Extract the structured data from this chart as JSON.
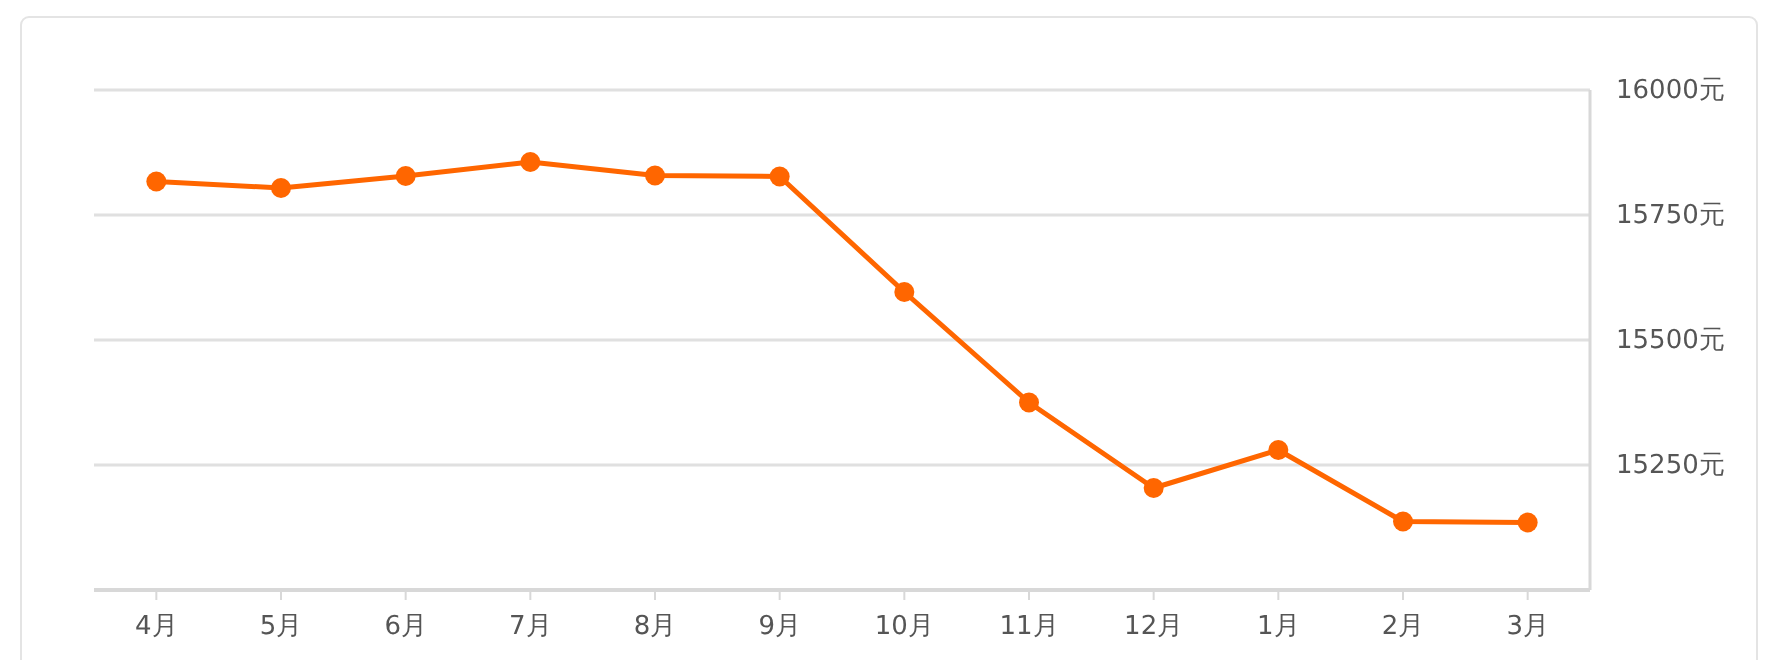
{
  "chart_data": {
    "type": "line",
    "categories": [
      "4月",
      "5月",
      "6月",
      "7月",
      "8月",
      "9月",
      "10月",
      "11月",
      "12月",
      "1月",
      "2月",
      "3月"
    ],
    "series": [
      {
        "color": "#ff6600",
        "values": [
          15817,
          15804,
          15828,
          15856,
          15829,
          15827,
          15596,
          15375,
          15204,
          15280,
          15137,
          15135
        ]
      }
    ],
    "ylim": [
      15000,
      16000
    ],
    "yticks": [
      {
        "value": 15250,
        "label": "15250元"
      },
      {
        "value": 15500,
        "label": "15500元"
      },
      {
        "value": 15750,
        "label": "15750元"
      },
      {
        "value": 16000,
        "label": "16000元"
      }
    ],
    "grid": "y",
    "marker": "circle",
    "line_style": "solid"
  }
}
